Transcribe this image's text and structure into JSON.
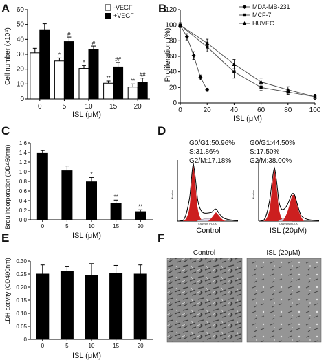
{
  "panels": {
    "A": {
      "letter": "A",
      "chart_data": {
        "type": "bar",
        "categories": [
          "0",
          "5",
          "10",
          "15",
          "20"
        ],
        "series": [
          {
            "name": "-VEGF",
            "values": [
              31,
              25.5,
              20.5,
              10.5,
              8
            ],
            "errors": [
              3,
              2,
              2,
              1.5,
              2
            ],
            "annotations": [
              "",
              "*",
              "*",
              "**",
              "**"
            ],
            "color": "#ffffff"
          },
          {
            "name": "+VEGF",
            "values": [
              46.5,
              38.5,
              33,
              21.5,
              11
            ],
            "errors": [
              4,
              3,
              2.5,
              3,
              3
            ],
            "annotations": [
              "",
              "#",
              "#",
              "##",
              "##"
            ],
            "color": "#000000"
          }
        ],
        "xlabel": "ISL (μM)",
        "ylabel": "Cell number (x10⁴)",
        "ylim": [
          0,
          60
        ],
        "yticks": [
          "0",
          "10",
          "20",
          "30",
          "40",
          "50",
          "60"
        ]
      }
    },
    "B": {
      "letter": "B",
      "chart_data": {
        "type": "line",
        "series": [
          {
            "name": "MDA-MB-231",
            "marker": "diamond",
            "x": [
              0,
              5,
              10,
              15,
              20
            ],
            "y": [
              100,
              85,
              61,
              33,
              17
            ],
            "errors": [
              3,
              4,
              5,
              3,
              2
            ]
          },
          {
            "name": "MCF-7",
            "marker": "square",
            "x": [
              0,
              20,
              40,
              60,
              80,
              100
            ],
            "y": [
              100,
              72,
              40,
              20,
              14,
              8
            ],
            "errors": [
              3,
              6,
              8,
              4,
              3,
              3
            ]
          },
          {
            "name": "HUVEC",
            "marker": "triangle",
            "x": [
              0,
              20,
              40,
              60,
              80,
              100
            ],
            "y": [
              100,
              77,
              50,
              27,
              17,
              8
            ],
            "errors": [
              3,
              5,
              6,
              5,
              4,
              3
            ]
          }
        ],
        "xlabel": "ISL (μM)",
        "ylabel": "Proliferation (%)",
        "xlim": [
          0,
          100
        ],
        "ylim": [
          0,
          120
        ],
        "xticks": [
          "0",
          "20",
          "40",
          "60",
          "80",
          "100"
        ],
        "yticks": [
          "0",
          "20",
          "40",
          "60",
          "80",
          "100",
          "120"
        ]
      }
    },
    "C": {
      "letter": "C",
      "chart_data": {
        "type": "bar",
        "categories": [
          "0",
          "5",
          "10",
          "15",
          "20"
        ],
        "values": [
          1.38,
          1.02,
          0.79,
          0.35,
          0.17
        ],
        "errors": [
          0.06,
          0.1,
          0.09,
          0.06,
          0.04
        ],
        "annotations": [
          "",
          "",
          "*",
          "**",
          "**"
        ],
        "color": "#000000",
        "xlabel": "ISL (μM)",
        "ylabel": "Brdu incorporation (OD450nm)",
        "ylim": [
          0,
          1.6
        ],
        "yticks": [
          "0.0",
          "0.2",
          "0.4",
          "0.6",
          "0.8",
          "1.0",
          "1.2",
          "1.4",
          "1.6"
        ]
      }
    },
    "D": {
      "letter": "D",
      "histograms": [
        {
          "condition": "Control",
          "g0g1": "G0/G1:50.96%",
          "s": "S:31.86%",
          "g2m": "G2/M:17.18%"
        },
        {
          "condition": "ISL (20μM)",
          "g0g1": "G0/G1:44.50%",
          "s": "S:17.50%",
          "g2m": "G2/M:38.00%"
        }
      ],
      "fill_color": "#cc1f1f"
    },
    "E": {
      "letter": "E",
      "chart_data": {
        "type": "bar",
        "categories": [
          "0",
          "5",
          "10",
          "15",
          "20"
        ],
        "values": [
          0.25,
          0.26,
          0.245,
          0.253,
          0.25
        ],
        "errors": [
          0.035,
          0.02,
          0.045,
          0.03,
          0.035
        ],
        "color": "#000000",
        "xlabel": "ISL (μM)",
        "ylabel": "LDH activity (OD490nm)",
        "ylim": [
          0,
          0.3
        ],
        "yticks": [
          "0",
          "0.05",
          "0.10",
          "0.15",
          "0.20",
          "0.25",
          "0.30"
        ]
      }
    },
    "F": {
      "letter": "F",
      "images": [
        {
          "caption": "Control"
        },
        {
          "caption": "ISL (20μM)"
        }
      ]
    }
  }
}
